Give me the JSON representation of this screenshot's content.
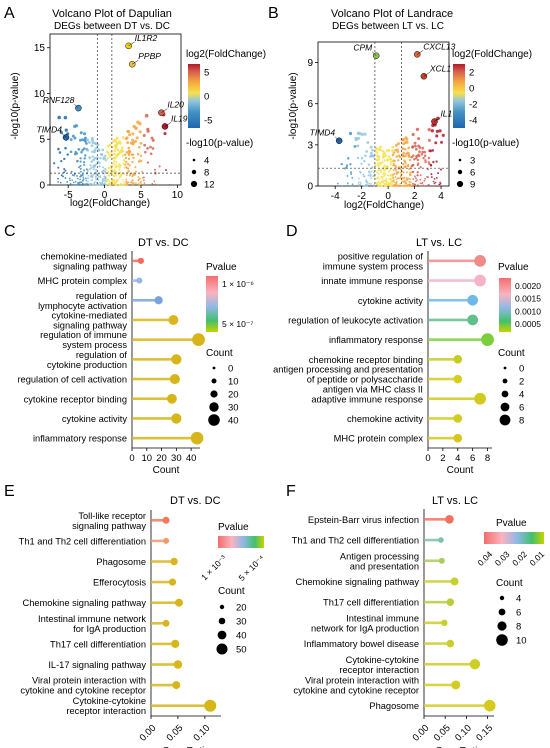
{
  "panels": {
    "A": {
      "letter": "A",
      "title": "Volcano Plot of Dapulian",
      "subtitle": "DEGs between DT vs. DC",
      "xlabel": "log2(FoldChange)",
      "ylabel": "-log10(p-value)",
      "color_legend_title": "log2(FoldChange)",
      "color_ticks": [
        "5",
        "0",
        "-5"
      ],
      "size_legend_title": "-log10(p-value)",
      "size_ticks": [
        "4",
        "8",
        "12"
      ]
    },
    "B": {
      "letter": "B",
      "title": "Volcano Plot of Landrace",
      "subtitle": "DEGs between LT vs. LC",
      "xlabel": "log2(FoldChange)",
      "ylabel": "-log10(p-value)",
      "color_legend_title": "log2(FoldChange)",
      "color_ticks": [
        "2",
        "0",
        "-2",
        "-4"
      ],
      "size_legend_title": "-log10(p-value)",
      "size_ticks": [
        "3",
        "6",
        "9"
      ]
    },
    "C": {
      "letter": "C",
      "title": "DT vs. DC",
      "legend_p_title": "Pvalue",
      "legend_p_ticks": [
        "1 × 10⁻⁶",
        "5 × 10⁻⁷"
      ],
      "legend_count_title": "Count",
      "legend_count_ticks": [
        "0",
        "10",
        "20",
        "30",
        "40"
      ]
    },
    "D": {
      "letter": "D",
      "title": "LT vs. LC",
      "legend_p_title": "Pvalue",
      "legend_p_ticks": [
        "0.0020",
        "0.0015",
        "0.0010",
        "0.0005"
      ],
      "legend_count_title": "Count",
      "legend_count_ticks": [
        "0",
        "2",
        "4",
        "6",
        "8"
      ]
    },
    "E": {
      "letter": "E",
      "title": "DT vs. DC",
      "legend_p_title": "Pvalue",
      "legend_p_ticks": [
        "1 × 10⁻³",
        "5 × 10⁻⁴"
      ],
      "legend_count_title": "Count",
      "legend_count_ticks": [
        "20",
        "30",
        "40",
        "50"
      ]
    },
    "F": {
      "letter": "F",
      "title": "LT vs. LC",
      "legend_p_title": "Pvalue",
      "legend_p_ticks": [
        "0.04",
        "0.03",
        "0.02",
        "0.01"
      ],
      "legend_count_title": "Count",
      "legend_count_ticks": [
        "4",
        "6",
        "8",
        "10"
      ]
    }
  },
  "colors": {
    "volcano_scale": [
      "#2166ac",
      "#4393c3",
      "#92c5de",
      "#f7e04b",
      "#f4a640",
      "#d6604d",
      "#b2182b"
    ],
    "pvalue_scale": [
      "#f46d6d",
      "#f9b4c0",
      "#8fb8e8",
      "#43c06b",
      "#c8d400"
    ],
    "enrich_line": "#d4a900",
    "dots_low_p": "#d9b600",
    "dots_high_p": "#f07050"
  },
  "chart_data": [
    {
      "type": "scatter",
      "panel": "A",
      "xlim": [
        -7.5,
        10.5
      ],
      "ylim": [
        0,
        16.5
      ],
      "x_ticks": [
        -5,
        0,
        5,
        10
      ],
      "y_ticks": [
        0,
        5,
        10,
        15
      ],
      "threshold_x": [
        -1,
        1
      ],
      "threshold_y": 1.3,
      "labeled_genes": [
        {
          "gene": "IL1R2",
          "x": 3.3,
          "y": 15.2,
          "color": "#f7d000"
        },
        {
          "gene": "PPBP",
          "x": 3.8,
          "y": 13.2,
          "color": "#f4c040"
        },
        {
          "gene": "RNF128",
          "x": -3.6,
          "y": 8.4,
          "color": "#4393c3"
        },
        {
          "gene": "TIMD4",
          "x": -5.3,
          "y": 5.2,
          "color": "#2166ac"
        },
        {
          "gene": "IL20",
          "x": 7.8,
          "y": 7.9,
          "color": "#d6604d"
        },
        {
          "gene": "IL19",
          "x": 8.3,
          "y": 6.4,
          "color": "#b2182b"
        }
      ]
    },
    {
      "type": "scatter",
      "panel": "B",
      "xlim": [
        -5.3,
        4.6
      ],
      "ylim": [
        0,
        10.5
      ],
      "x_ticks": [
        -4,
        -2,
        0,
        2,
        4
      ],
      "y_ticks": [
        0,
        3,
        6,
        9
      ],
      "threshold_x": [
        -1,
        1
      ],
      "threshold_y": 1.3,
      "labeled_genes": [
        {
          "gene": "CPM",
          "x": -0.9,
          "y": 9.5,
          "color": "#8bc34a"
        },
        {
          "gene": "CXCL13",
          "x": 2.2,
          "y": 9.6,
          "color": "#e0603a"
        },
        {
          "gene": "XCL1",
          "x": 2.7,
          "y": 8.0,
          "color": "#d04020"
        },
        {
          "gene": "IL17A",
          "x": 3.5,
          "y": 4.7,
          "color": "#c0302a"
        },
        {
          "gene": "TIMD4",
          "x": -3.7,
          "y": 3.3,
          "color": "#2166ac"
        }
      ]
    },
    {
      "type": "lollipop",
      "panel": "C",
      "xlabel": "Count",
      "xlim": [
        0,
        46
      ],
      "x_ticks": [
        0,
        10,
        20,
        30,
        40
      ],
      "categories": [
        "chemokine-mediated\nsignaling pathway",
        "MHC protein complex",
        "regulation of\nlymphocyte activation",
        "cytokine-mediated\nsignaling pathway",
        "regulation of immune\nsystem process",
        "regulation of\ncytokine production",
        "regulation of cell activation",
        "cytokine receptor binding",
        "cytokine activity",
        "inflammatory response"
      ],
      "values": [
        6,
        5,
        18,
        28,
        45,
        30,
        29,
        27,
        30,
        44
      ],
      "colors": [
        "#f26b5b",
        "#94b7e6",
        "#7aa3dd",
        "#d9b61e",
        "#d8b419",
        "#d6b518",
        "#d6b518",
        "#d6b518",
        "#d6b518",
        "#d6b518"
      ]
    },
    {
      "type": "lollipop",
      "panel": "D",
      "xlabel": "Count",
      "xlim": [
        0,
        8.6
      ],
      "x_ticks": [
        0,
        2,
        4,
        6,
        8
      ],
      "categories": [
        "positive regulation of\nimmune system process",
        "innate immune response",
        "cytokine activity",
        "regulation of leukocyte activation",
        "inflammatory response",
        "chemokine receptor binding",
        "antigen processing and presentation\nof peptide or polysaccharide\nantigen via MHC class II",
        "adaptive immune response",
        "chemokine activity",
        "MHC protein complex"
      ],
      "values": [
        7,
        7,
        6,
        6,
        8,
        4,
        4,
        7,
        4,
        4
      ],
      "colors": [
        "#f28a8a",
        "#f5b3c6",
        "#6fb9e8",
        "#5fc08a",
        "#7ccf3a",
        "#c8cc22",
        "#d4ce1c",
        "#cfcb20",
        "#d3cb1e",
        "#d6c81a"
      ]
    },
    {
      "type": "lollipop",
      "panel": "E",
      "xlabel": "GeneRatio",
      "xlim": [
        0,
        0.13
      ],
      "x_ticks": [
        0.0,
        0.05,
        0.1
      ],
      "x_tick_labels": [
        "0.00",
        "0.05",
        "0.10"
      ],
      "categories": [
        "Toll-like receptor\nsignaling pathway",
        "Th1 and Th2 cell differentiation",
        "Phagosome",
        "Efferocytosis",
        "Chemokine signaling pathway",
        "Intestinal immune network\nfor IgA production",
        "Th17 cell differentiation",
        "IL-17 signaling pathway",
        "Viral protein interaction with\ncytokine and cytokine receptor",
        "Cytokine-cytokine\nreceptor interaction"
      ],
      "values": [
        0.028,
        0.028,
        0.043,
        0.04,
        0.052,
        0.028,
        0.045,
        0.05,
        0.047,
        0.11
      ],
      "colors": [
        "#f27a5a",
        "#f29a6a",
        "#d9b620",
        "#d8b520",
        "#d7b61c",
        "#d9b420",
        "#d7b61c",
        "#d6b61a",
        "#d6b61a",
        "#d5b718"
      ]
    },
    {
      "type": "lollipop",
      "panel": "F",
      "xlabel": "GeneRatio",
      "xlim": [
        0,
        0.165
      ],
      "x_ticks": [
        0.0,
        0.05,
        0.1,
        0.15
      ],
      "x_tick_labels": [
        "0.00",
        "0.05",
        "0.10",
        "0.15"
      ],
      "categories": [
        "Epstein-Barr virus infection",
        "Th1 and Th2 cell differentiation",
        "Antigen processing\nand presentation",
        "Chemokine signaling pathway",
        "Th17 cell differentiation",
        "Intestinal immune\nnetwork for IgA production",
        "Inflammatory bowel disease",
        "Cytokine-cytokine\nreceptor interaction",
        "Viral protein interaction with\ncytokine and cytokine receptor",
        "Phagosome"
      ],
      "values": [
        0.06,
        0.04,
        0.042,
        0.072,
        0.062,
        0.048,
        0.062,
        0.12,
        0.075,
        0.155
      ],
      "colors": [
        "#f27060",
        "#7ec1a4",
        "#a8cc60",
        "#c6ce30",
        "#bccd38",
        "#c8cf2a",
        "#c9ce2c",
        "#cdce26",
        "#d0cc24",
        "#d4cb1e"
      ]
    }
  ]
}
